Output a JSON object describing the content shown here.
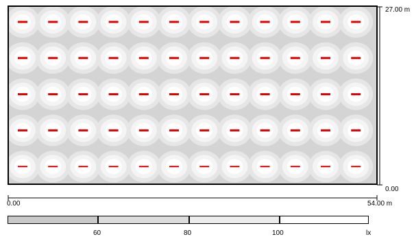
{
  "plan": {
    "width_label": "54.00 m",
    "height_label": "27.00 m",
    "origin_label": "0.00",
    "bottom_right_label": "0.00",
    "luminaires": {
      "rows": 5,
      "cols": 12,
      "color": "#e00000"
    }
  },
  "legend": {
    "unit": "lx",
    "ticks": [
      "60",
      "80",
      "100"
    ],
    "fills": [
      "#c9c9c9",
      "#dcdcdc",
      "#ececec",
      "#ffffff"
    ]
  },
  "colors": {
    "background": "#d4d4d4",
    "halo": "#e6e6e6",
    "core": "#f4f4f4",
    "center": "#ffffff"
  }
}
